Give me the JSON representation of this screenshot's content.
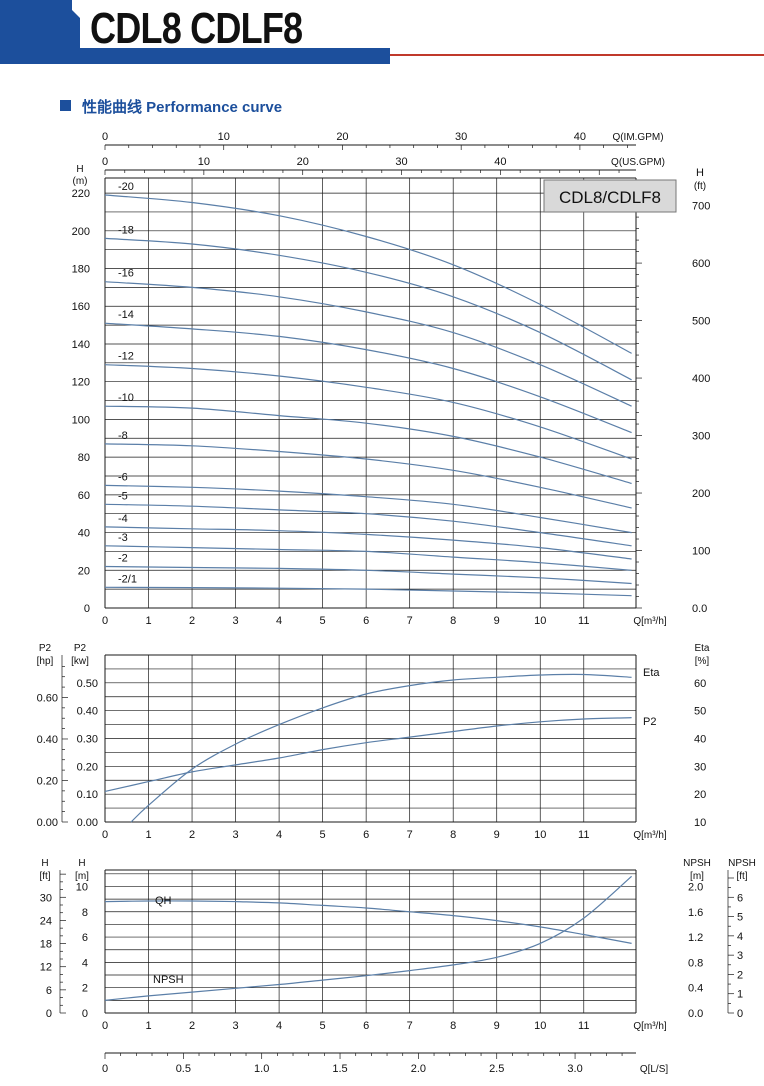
{
  "header": {
    "title": "CDL8 CDLF8",
    "section_title": "性能曲线  Performance curve",
    "accent_color": "#1c4f9c",
    "rule_color": "#c0392b"
  },
  "chart_data": [
    {
      "type": "line",
      "title": "CDL8/CDLF8",
      "xlabel": "Q[m³/h]",
      "ylabel_left": [
        "H",
        "(m)"
      ],
      "ylabel_right": [
        "H",
        "(ft)"
      ],
      "top_axis1_label": "Q(IM.GPM)",
      "top_axis2_label": "Q(US.GPM)",
      "xlim": [
        0,
        12.2
      ],
      "ylim": [
        0,
        228
      ],
      "y2lim": [
        0,
        748
      ],
      "x_ticks": [
        "0",
        "1",
        "2",
        "3",
        "4",
        "5",
        "6",
        "7",
        "8",
        "9",
        "10",
        "11"
      ],
      "y_ticks": [
        "0",
        "20",
        "40",
        "60",
        "80",
        "100",
        "120",
        "140",
        "160",
        "180",
        "200",
        "220"
      ],
      "y2_ticks": [
        "0.0",
        "100",
        "200",
        "300",
        "400",
        "500",
        "600",
        "700"
      ],
      "top1_ticks": [
        "0",
        "10",
        "20",
        "30",
        "40"
      ],
      "top2_ticks": [
        "0",
        "10",
        "20",
        "30",
        "40"
      ],
      "grid": true,
      "series": [
        {
          "name": "-20",
          "x": [
            0,
            2,
            4,
            6,
            8,
            10,
            12.1
          ],
          "values": [
            219,
            215,
            208,
            197,
            182,
            161,
            135
          ]
        },
        {
          "name": "-18",
          "x": [
            0,
            2,
            4,
            6,
            8,
            10,
            12.1
          ],
          "values": [
            196,
            193,
            187,
            178,
            165,
            146,
            121
          ]
        },
        {
          "name": "-16",
          "x": [
            0,
            2,
            4,
            6,
            8,
            10,
            12.1
          ],
          "values": [
            173,
            170,
            165,
            157,
            146,
            129,
            107
          ]
        },
        {
          "name": "-14",
          "x": [
            0,
            2,
            4,
            6,
            8,
            10,
            12.1
          ],
          "values": [
            151,
            148,
            144,
            137,
            127,
            112,
            93
          ]
        },
        {
          "name": "-12",
          "x": [
            0,
            2,
            4,
            6,
            8,
            10,
            12.1
          ],
          "values": [
            129,
            127,
            123,
            117,
            109,
            96,
            79
          ]
        },
        {
          "name": "-10",
          "x": [
            0,
            2,
            4,
            6,
            8,
            10,
            12.1
          ],
          "values": [
            107,
            106,
            102,
            98,
            91,
            80,
            66
          ]
        },
        {
          "name": "-8",
          "x": [
            0,
            2,
            4,
            6,
            8,
            10,
            12.1
          ],
          "values": [
            87,
            86,
            83,
            79,
            73,
            64,
            53
          ]
        },
        {
          "name": "-6",
          "x": [
            0,
            2,
            4,
            6,
            8,
            10,
            12.1
          ],
          "values": [
            65,
            64,
            62,
            59,
            55,
            48,
            40
          ]
        },
        {
          "name": "-5",
          "x": [
            0,
            2,
            4,
            6,
            8,
            10,
            12.1
          ],
          "values": [
            55,
            54,
            52,
            50,
            46,
            40,
            33
          ]
        },
        {
          "name": "-4",
          "x": [
            0,
            2,
            4,
            6,
            8,
            10,
            12.1
          ],
          "values": [
            43,
            42,
            41,
            39,
            36,
            32,
            26
          ]
        },
        {
          "name": "-3",
          "x": [
            0,
            2,
            4,
            6,
            8,
            10,
            12.1
          ],
          "values": [
            33,
            32,
            31,
            30,
            27,
            24,
            20
          ]
        },
        {
          "name": "-2",
          "x": [
            0,
            2,
            4,
            6,
            8,
            10,
            12.1
          ],
          "values": [
            22,
            21.5,
            21,
            20,
            18,
            16,
            13
          ]
        },
        {
          "name": "-2/1",
          "x": [
            0,
            2,
            4,
            6,
            8,
            10,
            12.1
          ],
          "values": [
            11,
            10.8,
            10.5,
            10,
            9,
            8,
            6.5
          ]
        }
      ]
    },
    {
      "type": "line",
      "xlabel": "Q[m³/h]",
      "ylabel_left_outer": [
        "P2",
        "[hp]"
      ],
      "ylabel_left_inner": [
        "P2",
        "[kw]"
      ],
      "ylabel_right": [
        "Eta",
        "[%]"
      ],
      "xlim": [
        0,
        12.2
      ],
      "ylim": [
        0,
        0.6
      ],
      "y2lim": [
        10,
        70
      ],
      "x_ticks": [
        "0",
        "1",
        "2",
        "3",
        "4",
        "5",
        "6",
        "7",
        "8",
        "9",
        "10",
        "11"
      ],
      "y_ticks": [
        "0.00",
        "0.10",
        "0.20",
        "0.30",
        "0.40",
        "0.50"
      ],
      "y_hp_ticks": [
        "0.00",
        "0.20",
        "0.40",
        "0.60"
      ],
      "y2_ticks": [
        "10",
        "20",
        "30",
        "40",
        "50",
        "60"
      ],
      "grid": true,
      "series": [
        {
          "name": "Eta",
          "axis": "right",
          "x": [
            0.6,
            1,
            2,
            3,
            4,
            5,
            6,
            7,
            8,
            9,
            10,
            11,
            12.1
          ],
          "values": [
            10,
            16,
            29,
            38,
            45,
            51,
            56,
            59,
            61,
            62,
            62.8,
            63,
            62
          ]
        },
        {
          "name": "P2",
          "axis": "left",
          "x": [
            0,
            1,
            2,
            3,
            4,
            5,
            6,
            7,
            8,
            9,
            10,
            11,
            12.1
          ],
          "values": [
            0.11,
            0.145,
            0.18,
            0.205,
            0.23,
            0.26,
            0.285,
            0.305,
            0.325,
            0.345,
            0.36,
            0.37,
            0.375
          ]
        }
      ]
    },
    {
      "type": "line",
      "xlabel": "Q[m³/h]",
      "x2label": "Q[L/S]",
      "ylabel_left_outer": [
        "H",
        "[ft]"
      ],
      "ylabel_left_inner": [
        "H",
        "[m]"
      ],
      "ylabel_right_inner": [
        "NPSH",
        "[m]"
      ],
      "ylabel_right_outer": [
        "NPSH",
        "[ft]"
      ],
      "xlim": [
        0,
        12.2
      ],
      "ylim": [
        0,
        11.3
      ],
      "y2lim": [
        0,
        2.26
      ],
      "x_ticks": [
        "0",
        "1",
        "2",
        "3",
        "4",
        "5",
        "6",
        "7",
        "8",
        "9",
        "10",
        "11"
      ],
      "x2_ticks": [
        "0",
        "0.5",
        "1.0",
        "1.5",
        "2.0",
        "2.5",
        "3.0"
      ],
      "y_ticks": [
        "0",
        "2",
        "4",
        "6",
        "8",
        "10"
      ],
      "y_ft_ticks": [
        "0",
        "6",
        "12",
        "18",
        "24",
        "30"
      ],
      "y2_ticks": [
        "0.0",
        "0.4",
        "0.8",
        "1.2",
        "1.6",
        "2.0"
      ],
      "y2_ft_ticks": [
        "0",
        "1",
        "2",
        "3",
        "4",
        "5",
        "6"
      ],
      "grid": true,
      "series": [
        {
          "name": "QH",
          "axis": "left",
          "x": [
            0,
            1,
            2,
            3,
            4,
            5,
            6,
            7,
            8,
            9,
            10,
            11,
            12.1
          ],
          "values": [
            8.8,
            8.85,
            8.85,
            8.8,
            8.7,
            8.5,
            8.3,
            8.0,
            7.7,
            7.3,
            6.8,
            6.2,
            5.5
          ]
        },
        {
          "name": "NPSH",
          "axis": "right",
          "x": [
            0,
            1,
            2,
            3,
            4,
            5,
            6,
            7,
            8,
            9,
            10,
            11,
            12.1
          ],
          "values": [
            0.2,
            0.27,
            0.33,
            0.39,
            0.45,
            0.52,
            0.59,
            0.67,
            0.76,
            0.88,
            1.1,
            1.5,
            2.16
          ]
        }
      ]
    }
  ]
}
